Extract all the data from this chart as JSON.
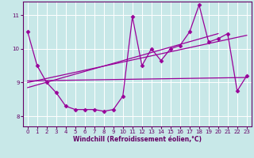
{
  "xlabel": "Windchill (Refroidissement éolien,°C)",
  "background_color": "#c8e8e8",
  "plot_bg_color": "#c8e8e8",
  "line_color": "#990099",
  "grid_color": "#ffffff",
  "xlim": [
    -0.5,
    23.5
  ],
  "ylim": [
    7.7,
    11.4
  ],
  "yticks": [
    8,
    9,
    10,
    11
  ],
  "xticks": [
    0,
    1,
    2,
    3,
    4,
    5,
    6,
    7,
    8,
    9,
    10,
    11,
    12,
    13,
    14,
    15,
    16,
    17,
    18,
    19,
    20,
    21,
    22,
    23
  ],
  "main_series": [
    10.5,
    9.5,
    9.0,
    8.7,
    8.3,
    8.2,
    8.2,
    8.2,
    8.15,
    8.2,
    8.6,
    10.95,
    9.5,
    10.0,
    9.65,
    10.0,
    10.1,
    10.5,
    11.3,
    10.2,
    10.3,
    10.45,
    8.75,
    9.2
  ],
  "trend1_x": [
    0,
    23
  ],
  "trend1_y": [
    9.05,
    9.15
  ],
  "trend2_x": [
    0,
    23
  ],
  "trend2_y": [
    9.0,
    10.4
  ],
  "trend3_x": [
    0,
    20
  ],
  "trend3_y": [
    8.85,
    10.45
  ],
  "marker": "D",
  "markersize": 2.5,
  "linewidth": 0.9,
  "tick_fontsize": 5,
  "label_fontsize": 5.5,
  "label_color": "#660066",
  "spine_color": "#660066"
}
